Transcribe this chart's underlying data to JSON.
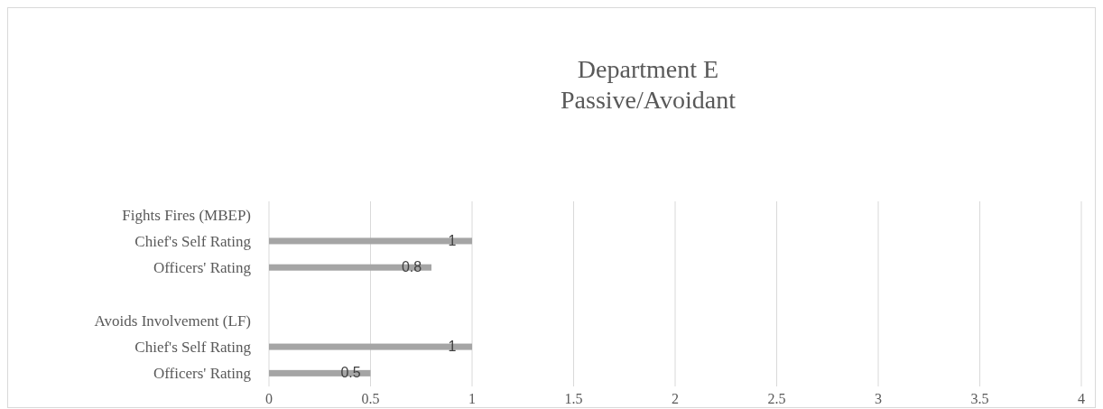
{
  "chart_data": {
    "type": "bar",
    "orientation": "horizontal",
    "title": "Department E\nPassive/Avoidant",
    "categories": [
      "Fights Fires (MBEP)",
      "Chief's Self Rating",
      "Officers' Rating",
      null,
      "Avoids Involvement (LF)",
      "Chief's Self Rating",
      "Officers' Rating"
    ],
    "values": [
      null,
      1,
      0.8,
      null,
      null,
      1,
      0.5
    ],
    "color": "#a5a5a5",
    "xlim": [
      0,
      4
    ],
    "xticks": [
      0,
      0.5,
      1,
      1.5,
      2,
      2.5,
      3,
      3.5,
      4
    ],
    "grid": "x",
    "data_labels": true
  }
}
